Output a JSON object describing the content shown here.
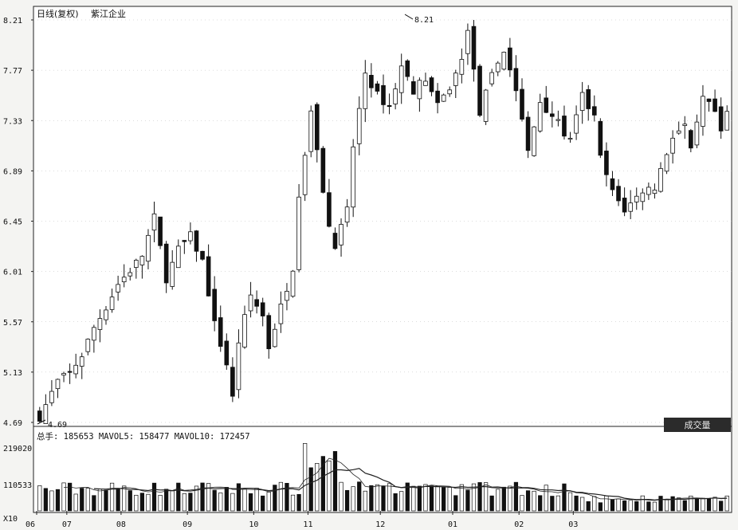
{
  "header": {
    "title": "日线(复权)",
    "stock_name": "紫江企业"
  },
  "volume_header": {
    "label": "总手: 185653 MAVOL5: 158477 MAVOL10: 172457",
    "button": "成交量"
  },
  "chart_data": [
    {
      "type": "candlestick",
      "title": "日线(复权) 紫江企业",
      "x_tick_labels": [
        "06",
        "07",
        "08",
        "09",
        "10",
        "11",
        "12",
        "01",
        "02",
        "03"
      ],
      "y_tick_labels": [
        "4.69",
        "5.13",
        "5.57",
        "6.01",
        "6.45",
        "6.89",
        "7.33",
        "7.77",
        "8.21"
      ],
      "ylim": [
        4.69,
        8.21
      ],
      "annotations": [
        {
          "text": "8.21",
          "note": "high"
        },
        {
          "text": "4.69",
          "note": "low"
        }
      ],
      "close_path": [
        [
          0,
          4.74
        ],
        [
          3,
          5.05
        ],
        [
          5,
          5.12
        ],
        [
          7,
          5.28
        ],
        [
          9,
          5.52
        ],
        [
          11,
          5.7
        ],
        [
          13,
          5.9
        ],
        [
          15,
          6.02
        ],
        [
          17,
          6.15
        ],
        [
          19,
          6.48
        ],
        [
          21,
          5.95
        ],
        [
          23,
          6.2
        ],
        [
          25,
          6.32
        ],
        [
          27,
          6.1
        ],
        [
          29,
          5.55
        ],
        [
          31,
          5.2
        ],
        [
          32,
          4.9
        ],
        [
          33,
          5.4
        ],
        [
          35,
          5.8
        ],
        [
          37,
          5.62
        ],
        [
          38,
          5.35
        ],
        [
          40,
          5.7
        ],
        [
          42,
          6.05
        ],
        [
          43,
          6.7
        ],
        [
          45,
          7.4
        ],
        [
          46,
          7.05
        ],
        [
          48,
          6.4
        ],
        [
          49,
          6.25
        ],
        [
          51,
          6.55
        ],
        [
          52,
          7.1
        ],
        [
          54,
          7.75
        ],
        [
          56,
          7.55
        ],
        [
          58,
          7.45
        ],
        [
          60,
          7.8
        ],
        [
          62,
          7.6
        ],
        [
          64,
          7.7
        ],
        [
          66,
          7.45
        ],
        [
          68,
          7.62
        ],
        [
          70,
          7.85
        ],
        [
          71,
          8.15
        ],
        [
          72,
          7.75
        ],
        [
          73,
          7.4
        ],
        [
          75,
          7.72
        ],
        [
          77,
          7.95
        ],
        [
          79,
          7.6
        ],
        [
          81,
          7.05
        ],
        [
          83,
          7.5
        ],
        [
          85,
          7.38
        ],
        [
          87,
          7.22
        ],
        [
          88,
          7.15
        ],
        [
          90,
          7.55
        ],
        [
          92,
          7.35
        ],
        [
          93,
          7.0
        ],
        [
          95,
          6.7
        ],
        [
          97,
          6.55
        ],
        [
          98,
          6.6
        ],
        [
          100,
          6.72
        ],
        [
          102,
          6.75
        ],
        [
          103,
          6.9
        ],
        [
          105,
          7.2
        ],
        [
          107,
          7.28
        ],
        [
          108,
          7.05
        ],
        [
          110,
          7.52
        ],
        [
          112,
          7.4
        ],
        [
          113,
          7.2
        ],
        [
          114,
          7.4
        ]
      ],
      "volume_yticks": [
        "219020",
        "110533",
        "X10"
      ],
      "mavol5_last": 158477,
      "mavol10_last": 172457,
      "total_volume_last": 185653
    }
  ]
}
